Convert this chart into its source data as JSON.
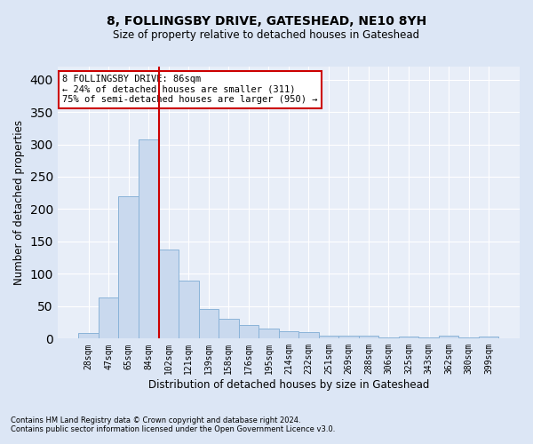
{
  "title1": "8, FOLLINGSBY DRIVE, GATESHEAD, NE10 8YH",
  "title2": "Size of property relative to detached houses in Gateshead",
  "xlabel": "Distribution of detached houses by size in Gateshead",
  "ylabel": "Number of detached properties",
  "categories": [
    "28sqm",
    "47sqm",
    "65sqm",
    "84sqm",
    "102sqm",
    "121sqm",
    "139sqm",
    "158sqm",
    "176sqm",
    "195sqm",
    "214sqm",
    "232sqm",
    "251sqm",
    "269sqm",
    "288sqm",
    "306sqm",
    "325sqm",
    "343sqm",
    "362sqm",
    "380sqm",
    "399sqm"
  ],
  "values": [
    8,
    63,
    220,
    307,
    138,
    90,
    46,
    30,
    21,
    15,
    11,
    10,
    5,
    4,
    4,
    2,
    3,
    2,
    5,
    2,
    3
  ],
  "bar_color": "#c9d9ee",
  "bar_edge_color": "#8ab3d8",
  "vline_x_index": 3,
  "vline_color": "#cc0000",
  "annotation_lines": [
    "8 FOLLINGSBY DRIVE: 86sqm",
    "← 24% of detached houses are smaller (311)",
    "75% of semi-detached houses are larger (950) →"
  ],
  "annotation_box_color": "#ffffff",
  "annotation_box_edgecolor": "#cc0000",
  "footnote1": "Contains HM Land Registry data © Crown copyright and database right 2024.",
  "footnote2": "Contains public sector information licensed under the Open Government Licence v3.0.",
  "ylim": [
    0,
    420
  ],
  "yticks": [
    0,
    50,
    100,
    150,
    200,
    250,
    300,
    350,
    400
  ],
  "background_color": "#dce6f5",
  "plot_bg_color": "#e8eef8",
  "title1_fontsize": 10,
  "title2_fontsize": 8.5,
  "ylabel_fontsize": 8.5,
  "xlabel_fontsize": 8.5,
  "tick_fontsize": 7,
  "annotation_fontsize": 7.5,
  "footnote_fontsize": 6
}
